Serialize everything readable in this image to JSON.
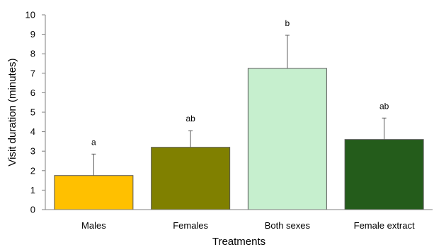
{
  "chart_data": {
    "type": "bar",
    "categories": [
      "Males",
      "Females",
      "Both sexes",
      "Female extract"
    ],
    "values": [
      1.75,
      3.2,
      7.25,
      3.6
    ],
    "error_upper": [
      2.85,
      4.05,
      8.95,
      4.7
    ],
    "significance_letters": [
      "a",
      "ab",
      "b",
      "ab"
    ],
    "bar_colors": [
      "#FFC000",
      "#808000",
      "#C6EFCE",
      "#245C1B"
    ],
    "xlabel": "Treatments",
    "ylabel": "Visit duration (minutes)",
    "ylim": [
      0,
      10
    ],
    "yticks": [
      "0",
      "1",
      "2",
      "3",
      "4",
      "5",
      "6",
      "7",
      "8",
      "9",
      "10"
    ],
    "grid": false,
    "legend": "none"
  }
}
